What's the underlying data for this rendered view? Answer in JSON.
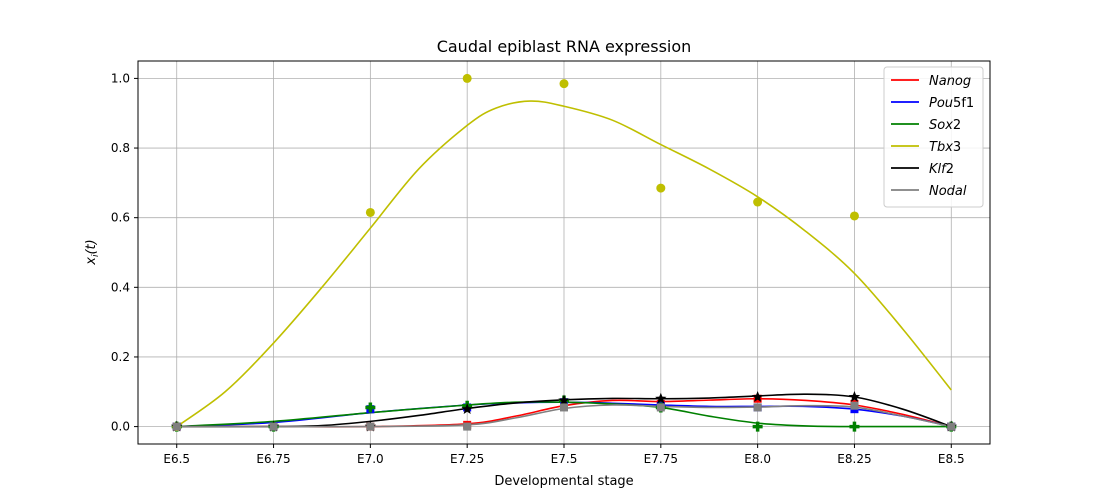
{
  "chart_data": {
    "type": "line",
    "title": "Caudal epiblast RNA expression",
    "xlabel": "Developmental stage",
    "ylabel": "x_i(t)",
    "categories": [
      "E6.5",
      "E6.75",
      "E7.0",
      "E7.25",
      "E7.5",
      "E7.75",
      "E8.0",
      "E8.25",
      "E8.5"
    ],
    "xlim": [
      -0.4,
      8.4
    ],
    "ylim": [
      -0.05,
      1.05
    ],
    "yticks": [
      0.0,
      0.2,
      0.4,
      0.6,
      0.8,
      1.0
    ],
    "ytick_labels": [
      "0.0",
      "0.2",
      "0.4",
      "0.6",
      "0.8",
      "1.0"
    ],
    "grid": true,
    "legend_position": "upper-right",
    "series": [
      {
        "name": "Nanog",
        "name_base": "Nanog",
        "name_suffix": "",
        "color": "#ff0000",
        "marker": "square",
        "points": [
          0,
          0,
          0,
          0.005,
          0.06,
          0.065,
          0.08,
          0.065,
          0
        ],
        "curve": [
          [
            0,
            0
          ],
          [
            1,
            0
          ],
          [
            2,
            0
          ],
          [
            3,
            0.008
          ],
          [
            3.5,
            0.03
          ],
          [
            4,
            0.06
          ],
          [
            4.5,
            0.075
          ],
          [
            5,
            0.072
          ],
          [
            5.5,
            0.076
          ],
          [
            6,
            0.08
          ],
          [
            6.5,
            0.075
          ],
          [
            7,
            0.062
          ],
          [
            7.5,
            0.035
          ],
          [
            8,
            0
          ]
        ]
      },
      {
        "name": "Pou5f1",
        "name_base": "Pou",
        "name_suffix": "5f1",
        "color": "#0000ff",
        "marker": "square",
        "points": [
          0,
          0,
          0.05,
          0.055,
          0.07,
          0.06,
          0.055,
          0.05,
          0
        ],
        "curve": [
          [
            0,
            0
          ],
          [
            1,
            0.012
          ],
          [
            2,
            0.04
          ],
          [
            3,
            0.062
          ],
          [
            3.5,
            0.068
          ],
          [
            4,
            0.07
          ],
          [
            4.5,
            0.067
          ],
          [
            5,
            0.062
          ],
          [
            5.5,
            0.058
          ],
          [
            6,
            0.058
          ],
          [
            6.5,
            0.058
          ],
          [
            7,
            0.05
          ],
          [
            7.5,
            0.03
          ],
          [
            8,
            0
          ]
        ]
      },
      {
        "name": "Sox2",
        "name_base": "Sox",
        "name_suffix": "2",
        "color": "#008000",
        "marker": "plus",
        "points": [
          0,
          0,
          0.055,
          0.06,
          0.075,
          0.055,
          0,
          0,
          0
        ],
        "curve": [
          [
            0,
            0
          ],
          [
            1,
            0.015
          ],
          [
            2,
            0.04
          ],
          [
            3,
            0.062
          ],
          [
            3.5,
            0.07
          ],
          [
            4,
            0.07
          ],
          [
            4.5,
            0.065
          ],
          [
            5,
            0.055
          ],
          [
            5.5,
            0.03
          ],
          [
            6,
            0.01
          ],
          [
            6.5,
            0.002
          ],
          [
            7,
            0
          ],
          [
            7.5,
            0
          ],
          [
            8,
            0
          ]
        ]
      },
      {
        "name": "Tbx3",
        "name_base": "Tbx",
        "name_suffix": "3",
        "color": "#bfbf00",
        "marker": "circle",
        "points": [
          0,
          null,
          0.615,
          1.0,
          0.985,
          0.685,
          0.645,
          0.605,
          null
        ],
        "curve": [
          [
            0,
            0
          ],
          [
            0.5,
            0.1
          ],
          [
            1,
            0.24
          ],
          [
            1.5,
            0.4
          ],
          [
            2,
            0.57
          ],
          [
            2.5,
            0.74
          ],
          [
            3,
            0.865
          ],
          [
            3.3,
            0.915
          ],
          [
            3.65,
            0.935
          ],
          [
            4,
            0.92
          ],
          [
            4.5,
            0.88
          ],
          [
            5,
            0.81
          ],
          [
            5.5,
            0.74
          ],
          [
            6,
            0.66
          ],
          [
            6.5,
            0.56
          ],
          [
            7,
            0.44
          ],
          [
            7.5,
            0.28
          ],
          [
            8,
            0.105
          ]
        ]
      },
      {
        "name": "Klf2",
        "name_base": "Klf",
        "name_suffix": "2",
        "color": "#000000",
        "marker": "star",
        "points": [
          0,
          0,
          0,
          0.05,
          0.075,
          0.08,
          0.085,
          0.085,
          0
        ],
        "curve": [
          [
            0,
            0
          ],
          [
            1,
            0
          ],
          [
            1.5,
            0.003
          ],
          [
            2,
            0.015
          ],
          [
            2.5,
            0.032
          ],
          [
            3,
            0.052
          ],
          [
            3.5,
            0.068
          ],
          [
            4,
            0.077
          ],
          [
            4.5,
            0.081
          ],
          [
            5,
            0.08
          ],
          [
            5.5,
            0.082
          ],
          [
            6,
            0.088
          ],
          [
            6.5,
            0.093
          ],
          [
            7,
            0.085
          ],
          [
            7.5,
            0.05
          ],
          [
            8,
            0
          ]
        ]
      },
      {
        "name": "Nodal",
        "name_base": "Nodal",
        "name_suffix": "",
        "color": "#808080",
        "marker": "square",
        "points": [
          0,
          0,
          0,
          0,
          0.055,
          0.055,
          0.055,
          0.06,
          0
        ],
        "curve": [
          [
            0,
            0
          ],
          [
            1,
            0
          ],
          [
            2,
            0
          ],
          [
            3,
            0.005
          ],
          [
            3.5,
            0.025
          ],
          [
            4,
            0.052
          ],
          [
            4.5,
            0.062
          ],
          [
            5,
            0.058
          ],
          [
            5.5,
            0.055
          ],
          [
            6,
            0.056
          ],
          [
            6.5,
            0.06
          ],
          [
            7,
            0.056
          ],
          [
            7.5,
            0.03
          ],
          [
            8,
            0
          ]
        ]
      }
    ]
  }
}
